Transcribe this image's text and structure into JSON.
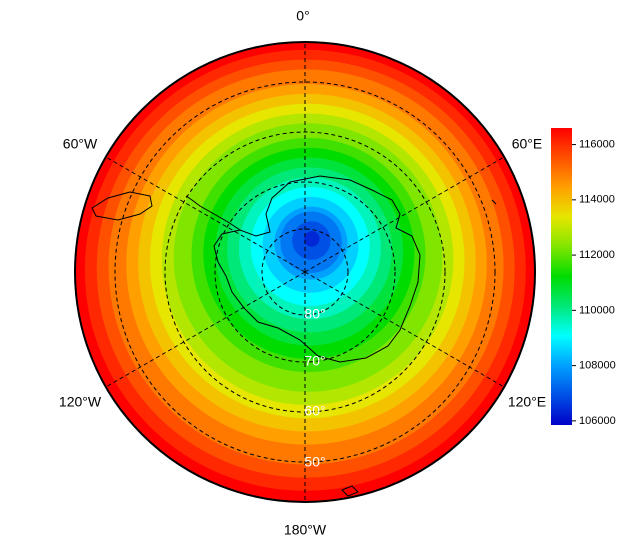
{
  "map": {
    "longitude_labels": [
      "0°",
      "60°E",
      "120°E",
      "180°W",
      "120°W",
      "60°W"
    ],
    "latitude_labels": [
      "80°",
      "70°",
      "60°",
      "50°"
    ],
    "colorbar": {
      "range": [
        105850,
        116600
      ],
      "ticks": [
        106000,
        108000,
        110000,
        112000,
        114000,
        116000
      ],
      "colors": [
        "#0000c8",
        "#0050e6",
        "#00a0ff",
        "#00ffff",
        "#00e878",
        "#00dc00",
        "#80e600",
        "#e6e600",
        "#ffa000",
        "#ff5000",
        "#ff0000"
      ]
    }
  }
}
